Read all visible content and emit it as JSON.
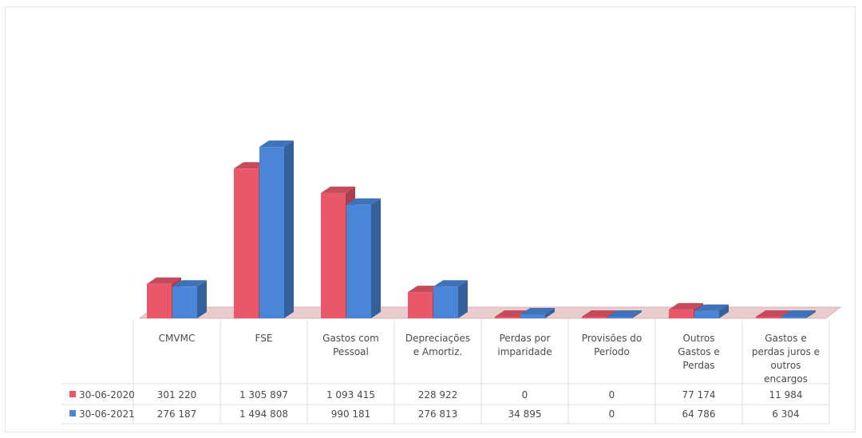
{
  "chart_data": {
    "type": "bar",
    "style": "3d-clustered-column-with-data-table",
    "categories": [
      [
        "CMVMC"
      ],
      [
        "FSE"
      ],
      [
        "Gastos com",
        "Pessoal"
      ],
      [
        "Depreciações",
        "e Amortiz."
      ],
      [
        "Perdas por",
        "imparidade"
      ],
      [
        "Provisões do",
        "Período"
      ],
      [
        "Outros",
        "Gastos e",
        "Perdas"
      ],
      [
        "Gastos e",
        "perdas juros e",
        "outros",
        "encargos"
      ]
    ],
    "series": [
      {
        "name": "30-06-2020",
        "color": "#e8586a",
        "values": [
          301220,
          1305897,
          1093415,
          228922,
          0,
          0,
          77174,
          11984
        ],
        "labels": [
          "301 220",
          "1 305 897",
          "1 093 415",
          "228 922",
          "0",
          "0",
          "77 174",
          "11 984"
        ]
      },
      {
        "name": "30-06-2021",
        "color": "#4a86d8",
        "values": [
          276187,
          1494808,
          990181,
          276813,
          34895,
          0,
          64786,
          6304
        ],
        "labels": [
          "276 187",
          "1 494 808",
          "990 181",
          "276 813",
          "34 895",
          "0",
          "64 786",
          "6 304"
        ]
      }
    ],
    "legend_position": "data-table-left",
    "grid": false,
    "ylim": [
      0,
      1600000
    ]
  }
}
